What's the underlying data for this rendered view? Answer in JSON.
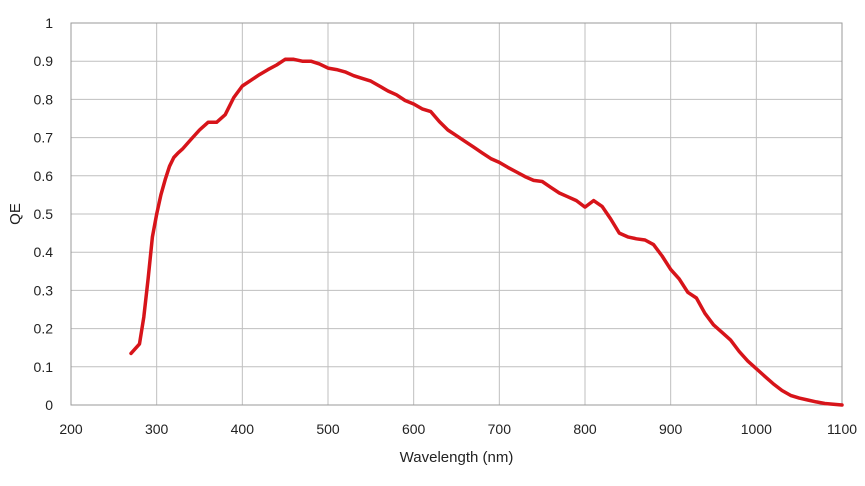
{
  "chart_data": {
    "type": "line",
    "title": "",
    "xlabel": "Wavelength (nm)",
    "ylabel": "QE",
    "xlim": [
      200,
      1100
    ],
    "ylim": [
      0,
      1
    ],
    "xticks": [
      200,
      300,
      400,
      500,
      600,
      700,
      800,
      900,
      1000,
      1100
    ],
    "yticks": [
      0,
      0.1,
      0.2,
      0.3,
      0.4,
      0.5,
      0.6,
      0.7,
      0.8,
      0.9,
      1
    ],
    "ytick_labels": [
      "0",
      "0.1",
      "0.2",
      "0.3",
      "0.4",
      "0.5",
      "0.6",
      "0.7",
      "0.8",
      "0.9",
      "1"
    ],
    "grid": true,
    "legend": "none",
    "colors": {
      "series": "#d7141a",
      "grid": "#bfbfbf",
      "frame": "#9a9a9a"
    },
    "series": [
      {
        "x": [
          270,
          280,
          285,
          290,
          295,
          300,
          305,
          310,
          315,
          320,
          325,
          330,
          340,
          350,
          360,
          370,
          380,
          390,
          400,
          410,
          420,
          430,
          440,
          450,
          460,
          470,
          480,
          490,
          500,
          510,
          520,
          530,
          540,
          550,
          560,
          570,
          580,
          590,
          600,
          610,
          620,
          630,
          640,
          650,
          660,
          670,
          680,
          690,
          700,
          710,
          720,
          730,
          740,
          750,
          760,
          770,
          780,
          790,
          800,
          810,
          820,
          830,
          840,
          850,
          860,
          870,
          880,
          890,
          900,
          910,
          920,
          930,
          940,
          950,
          960,
          970,
          980,
          990,
          1000,
          1010,
          1020,
          1030,
          1040,
          1050,
          1060,
          1070,
          1080,
          1090,
          1100
        ],
        "values": [
          0.135,
          0.16,
          0.23,
          0.33,
          0.44,
          0.5,
          0.55,
          0.59,
          0.625,
          0.648,
          0.66,
          0.67,
          0.695,
          0.72,
          0.74,
          0.74,
          0.76,
          0.805,
          0.835,
          0.85,
          0.865,
          0.878,
          0.89,
          0.905,
          0.905,
          0.9,
          0.9,
          0.893,
          0.882,
          0.878,
          0.872,
          0.862,
          0.855,
          0.848,
          0.835,
          0.822,
          0.812,
          0.797,
          0.788,
          0.775,
          0.768,
          0.742,
          0.72,
          0.705,
          0.69,
          0.675,
          0.66,
          0.645,
          0.635,
          0.622,
          0.61,
          0.598,
          0.588,
          0.585,
          0.57,
          0.555,
          0.545,
          0.535,
          0.518,
          0.535,
          0.52,
          0.487,
          0.45,
          0.44,
          0.435,
          0.432,
          0.42,
          0.39,
          0.355,
          0.33,
          0.295,
          0.28,
          0.24,
          0.21,
          0.19,
          0.17,
          0.14,
          0.115,
          0.095,
          0.075,
          0.055,
          0.038,
          0.025,
          0.018,
          0.013,
          0.008,
          0.004,
          0.002,
          0
        ]
      }
    ]
  }
}
